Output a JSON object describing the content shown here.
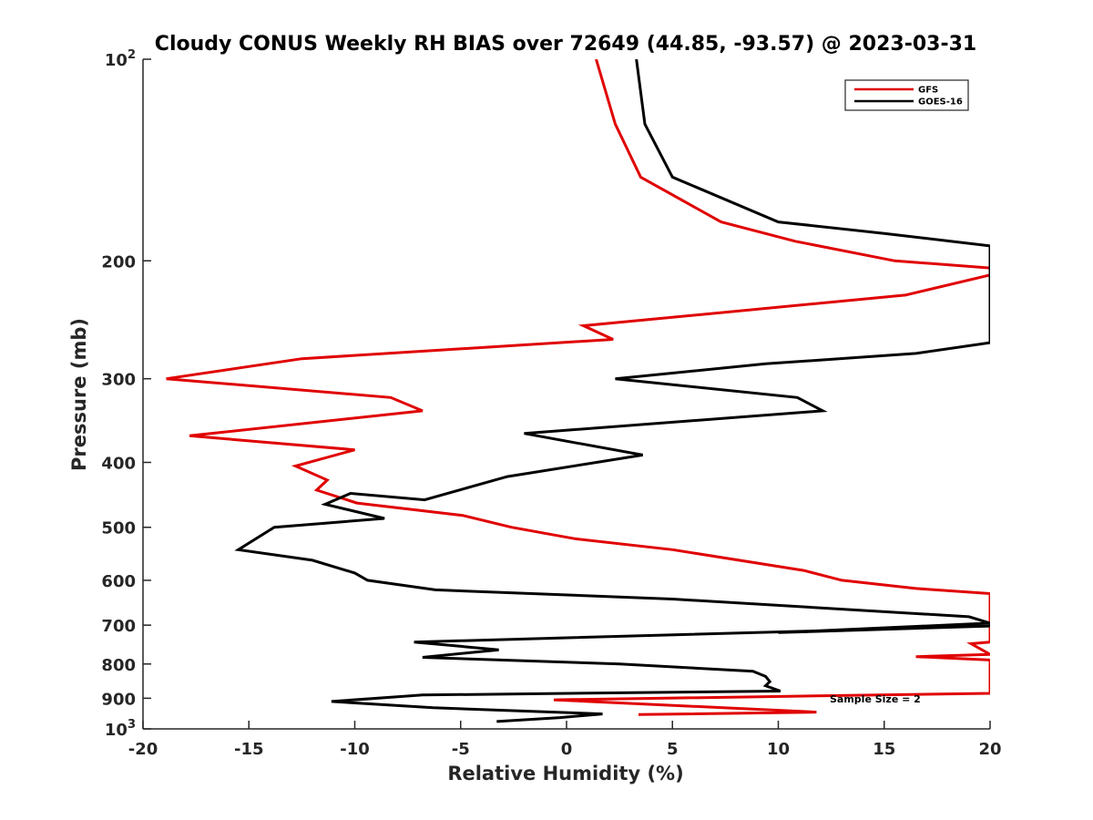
{
  "chart_data": {
    "type": "line",
    "title": "Cloudy CONUS Weekly RH BIAS over 72649 (44.85, -93.57) @ 2023-03-31",
    "xlabel": "Relative Humidity (%)",
    "ylabel": "Pressure (mb)",
    "xlim": [
      -20,
      20
    ],
    "ylim": [
      100,
      1000
    ],
    "y_scale": "log",
    "y_reversed": true,
    "grid": false,
    "legend_position": "top-right",
    "x_ticks": [
      "-20",
      "-15",
      "-10",
      "-5",
      "0",
      "5",
      "10",
      "15",
      "20"
    ],
    "y_ticks": [
      {
        "value": 100,
        "base": "10",
        "exp": "2"
      },
      {
        "value": 200,
        "label": "200"
      },
      {
        "value": 300,
        "label": "300"
      },
      {
        "value": 400,
        "label": "400"
      },
      {
        "value": 500,
        "label": "500"
      },
      {
        "value": 600,
        "label": "600"
      },
      {
        "value": 700,
        "label": "700"
      },
      {
        "value": 800,
        "label": "800"
      },
      {
        "value": 900,
        "label": "900"
      },
      {
        "value": 1000,
        "base": "10",
        "exp": "3"
      }
    ],
    "annotation": "Sample Size = 2",
    "series": [
      {
        "name": "GFS",
        "color": "#e00000",
        "points": [
          [
            1.4,
            100
          ],
          [
            2.3,
            125
          ],
          [
            3.5,
            150
          ],
          [
            7.3,
            175
          ],
          [
            10.8,
            187
          ],
          [
            15.5,
            200
          ],
          [
            20,
            205
          ],
          [
            20,
            210
          ],
          [
            16.0,
            225
          ],
          [
            0.8,
            250
          ],
          [
            2.2,
            262
          ],
          [
            -12.5,
            280
          ],
          [
            -18.9,
            300
          ],
          [
            -8.3,
            320
          ],
          [
            -6.8,
            335
          ],
          [
            -17.8,
            365
          ],
          [
            -10.0,
            383
          ],
          [
            -12.8,
            405
          ],
          [
            -11.3,
            425
          ],
          [
            -11.8,
            440
          ],
          [
            -9.9,
            460
          ],
          [
            -4.9,
            480
          ],
          [
            -2.6,
            500
          ],
          [
            0.4,
            520
          ],
          [
            5.0,
            540
          ],
          [
            11.2,
            580
          ],
          [
            13.0,
            600
          ],
          [
            16.5,
            617
          ],
          [
            20,
            628
          ],
          [
            20,
            742
          ],
          [
            19.1,
            746
          ],
          [
            20,
            774
          ],
          [
            16.5,
            780
          ],
          [
            20,
            789
          ],
          [
            20,
            885
          ],
          [
            -0.6,
            905
          ],
          [
            11.8,
            944
          ],
          [
            3.4,
            952
          ]
        ]
      },
      {
        "name": "GOES-16",
        "color": "#000000",
        "points": [
          [
            3.3,
            100
          ],
          [
            3.7,
            125
          ],
          [
            5.0,
            150
          ],
          [
            10.0,
            175
          ],
          [
            15.0,
            182
          ],
          [
            20,
            190
          ],
          [
            20,
            265
          ],
          [
            16.5,
            275
          ],
          [
            9.4,
            285
          ],
          [
            2.3,
            300
          ],
          [
            10.9,
            320
          ],
          [
            12.1,
            335
          ],
          [
            -2.0,
            362
          ],
          [
            3.6,
            390
          ],
          [
            -2.8,
            420
          ],
          [
            -6.7,
            455
          ],
          [
            -10.2,
            445
          ],
          [
            -11.4,
            462
          ],
          [
            -8.6,
            485
          ],
          [
            -13.8,
            500
          ],
          [
            -15.5,
            540
          ],
          [
            -12.0,
            560
          ],
          [
            -10.0,
            585
          ],
          [
            -9.4,
            600
          ],
          [
            -6.2,
            620
          ],
          [
            5.0,
            640
          ],
          [
            19.0,
            680
          ],
          [
            20,
            695
          ],
          [
            10.0,
            718
          ],
          [
            20,
            702
          ],
          [
            -7.2,
            742
          ],
          [
            -3.2,
            762
          ],
          [
            -6.8,
            782
          ],
          [
            2.5,
            800
          ],
          [
            8.8,
            820
          ],
          [
            9.4,
            835
          ],
          [
            9.6,
            850
          ],
          [
            9.4,
            862
          ],
          [
            10.1,
            878
          ],
          [
            -6.8,
            890
          ],
          [
            -11.1,
            910
          ],
          [
            -6.3,
            930
          ],
          [
            1.7,
            950
          ],
          [
            -0.3,
            962
          ],
          [
            -3.3,
            975
          ]
        ]
      }
    ]
  }
}
